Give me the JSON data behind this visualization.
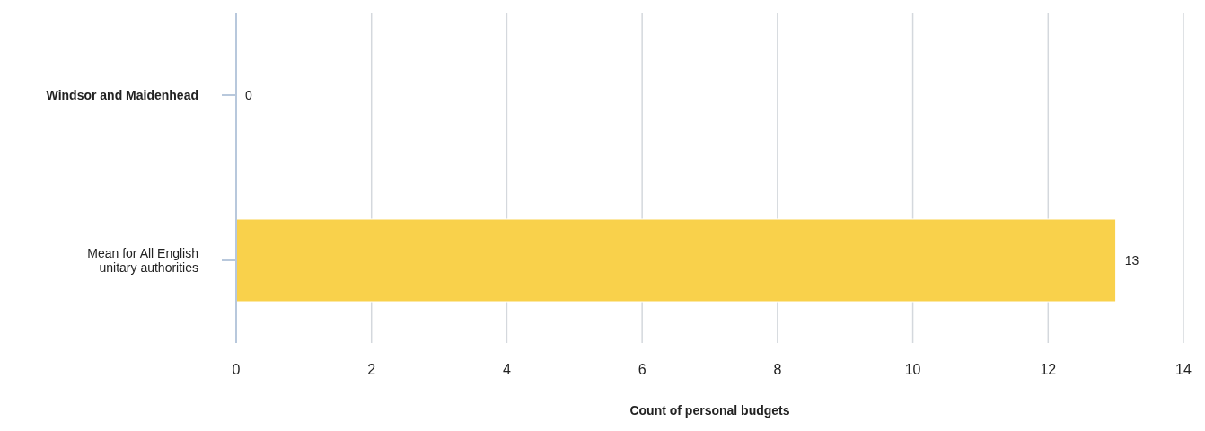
{
  "chart_data": {
    "type": "bar",
    "orientation": "horizontal",
    "categories": [
      "Windsor and Maidenhead",
      "Mean for All English unitary authorities"
    ],
    "values": [
      0,
      13
    ],
    "color": "#f9d14b",
    "xlim": [
      0,
      14
    ],
    "xticks": [
      0,
      2,
      4,
      6,
      8,
      10,
      12,
      14
    ],
    "grid": "x",
    "data_labels": true,
    "xlabel": "Count of personal budgets"
  }
}
